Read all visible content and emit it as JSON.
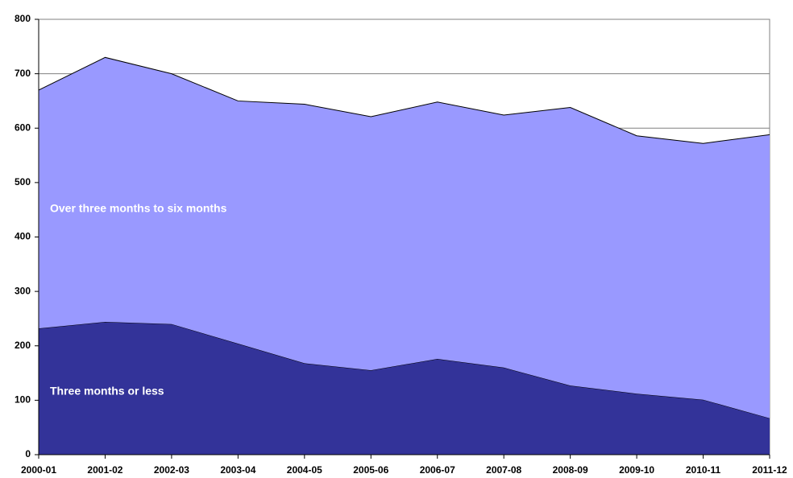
{
  "chart_data": {
    "type": "stacked_area",
    "categories": [
      "2000-01",
      "2001-02",
      "2002-03",
      "2003-04",
      "2004-05",
      "2005-06",
      "2006-07",
      "2007-08",
      "2008-09",
      "2009-10",
      "2010-11",
      "2011-12"
    ],
    "series": [
      {
        "name": "Three months or less",
        "color": "#333399",
        "values": [
          232,
          244,
          240,
          204,
          168,
          155,
          176,
          160,
          127,
          112,
          101,
          67
        ]
      },
      {
        "name": "Over three months to six months",
        "color": "#9999ff",
        "values": [
          438,
          486,
          460,
          446,
          476,
          466,
          472,
          464,
          511,
          474,
          471,
          521
        ]
      }
    ],
    "ylim": [
      0,
      800
    ],
    "yticks": [
      0,
      100,
      200,
      300,
      400,
      500,
      600,
      700,
      800
    ],
    "grid": true
  }
}
